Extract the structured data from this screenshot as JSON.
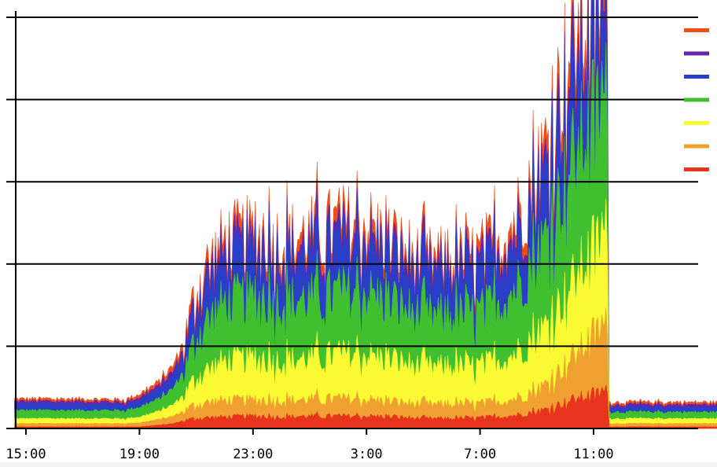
{
  "chart_data": {
    "type": "area",
    "stacked": true,
    "title": "",
    "xlabel": "",
    "ylabel": "",
    "x_tick_labels": [
      "15:00",
      "19:00",
      "23:00",
      "3:00",
      "7:00",
      "11:00"
    ],
    "x_ticks_hours": [
      15,
      19,
      23,
      27,
      31,
      35
    ],
    "x_range_hours": [
      14.6,
      39.9
    ],
    "data_end_hour": 39.8,
    "y_gridlines": 5,
    "y_range_units": [
      0,
      5
    ],
    "grid": true,
    "legend_position": "right",
    "time_points_hours": [
      14.6,
      15,
      17,
      18.5,
      19,
      19.7,
      20.2,
      20.6,
      20.9,
      21.3,
      22,
      23,
      24,
      25,
      26,
      27,
      28,
      29,
      30,
      31,
      32,
      33,
      33.5,
      34,
      34.5,
      35,
      35.5,
      35.55,
      35.6,
      37,
      39,
      39.8
    ],
    "series": [
      {
        "color": "#e8331f",
        "values": [
          0.02,
          0.02,
          0.02,
          0.02,
          0.02,
          0.04,
          0.06,
          0.1,
          0.12,
          0.13,
          0.14,
          0.15,
          0.14,
          0.15,
          0.15,
          0.15,
          0.14,
          0.12,
          0.12,
          0.13,
          0.15,
          0.2,
          0.25,
          0.32,
          0.37,
          0.42,
          0.45,
          0.02,
          0.02,
          0.02,
          0.02,
          0.02
        ]
      },
      {
        "color": "#f0a030",
        "values": [
          0.04,
          0.04,
          0.04,
          0.04,
          0.05,
          0.07,
          0.09,
          0.12,
          0.16,
          0.18,
          0.2,
          0.19,
          0.2,
          0.2,
          0.21,
          0.2,
          0.18,
          0.17,
          0.17,
          0.17,
          0.19,
          0.25,
          0.34,
          0.45,
          0.57,
          0.72,
          0.8,
          0.04,
          0.04,
          0.04,
          0.04,
          0.04
        ]
      },
      {
        "color": "#fafa32",
        "values": [
          0.06,
          0.06,
          0.06,
          0.06,
          0.07,
          0.1,
          0.14,
          0.2,
          0.3,
          0.38,
          0.48,
          0.5,
          0.48,
          0.5,
          0.54,
          0.54,
          0.5,
          0.45,
          0.45,
          0.46,
          0.52,
          0.65,
          0.75,
          0.85,
          0.95,
          1.05,
          1.12,
          0.06,
          0.06,
          0.06,
          0.06,
          0.06
        ]
      },
      {
        "color": "#40c030",
        "values": [
          0.1,
          0.1,
          0.1,
          0.1,
          0.12,
          0.15,
          0.2,
          0.3,
          0.45,
          0.58,
          0.72,
          0.74,
          0.72,
          0.72,
          0.74,
          0.76,
          0.68,
          0.62,
          0.62,
          0.65,
          0.75,
          0.95,
          1.15,
          1.4,
          1.55,
          1.6,
          1.6,
          0.08,
          0.08,
          0.08,
          0.08,
          0.08
        ]
      },
      {
        "color": "#2a3fc8",
        "values": [
          0.08,
          0.08,
          0.08,
          0.07,
          0.09,
          0.12,
          0.16,
          0.22,
          0.32,
          0.42,
          0.48,
          0.52,
          0.5,
          0.52,
          0.56,
          0.56,
          0.5,
          0.46,
          0.46,
          0.48,
          0.54,
          0.66,
          0.78,
          0.92,
          0.88,
          0.82,
          0.74,
          0.06,
          0.06,
          0.06,
          0.06,
          0.06
        ]
      },
      {
        "color": "#6a22a8",
        "values": [
          0.03,
          0.03,
          0.03,
          0.03,
          0.03,
          0.04,
          0.05,
          0.06,
          0.08,
          0.1,
          0.1,
          0.1,
          0.1,
          0.1,
          0.1,
          0.1,
          0.09,
          0.09,
          0.09,
          0.09,
          0.1,
          0.12,
          0.14,
          0.16,
          0.18,
          0.2,
          0.2,
          0.03,
          0.03,
          0.03,
          0.03,
          0.03
        ]
      },
      {
        "color": "#ec4e1c",
        "values": [
          0.03,
          0.03,
          0.03,
          0.03,
          0.04,
          0.05,
          0.07,
          0.09,
          0.12,
          0.14,
          0.15,
          0.15,
          0.14,
          0.15,
          0.16,
          0.16,
          0.14,
          0.12,
          0.12,
          0.13,
          0.15,
          0.2,
          0.25,
          0.3,
          0.35,
          0.38,
          0.38,
          0.03,
          0.03,
          0.03,
          0.03,
          0.03
        ]
      }
    ],
    "legend_order_top_to_bottom": [
      "#ec4e1c",
      "#6a22a8",
      "#2a3fc8",
      "#40c030",
      "#fafa32",
      "#f0a030",
      "#e8331f"
    ]
  }
}
